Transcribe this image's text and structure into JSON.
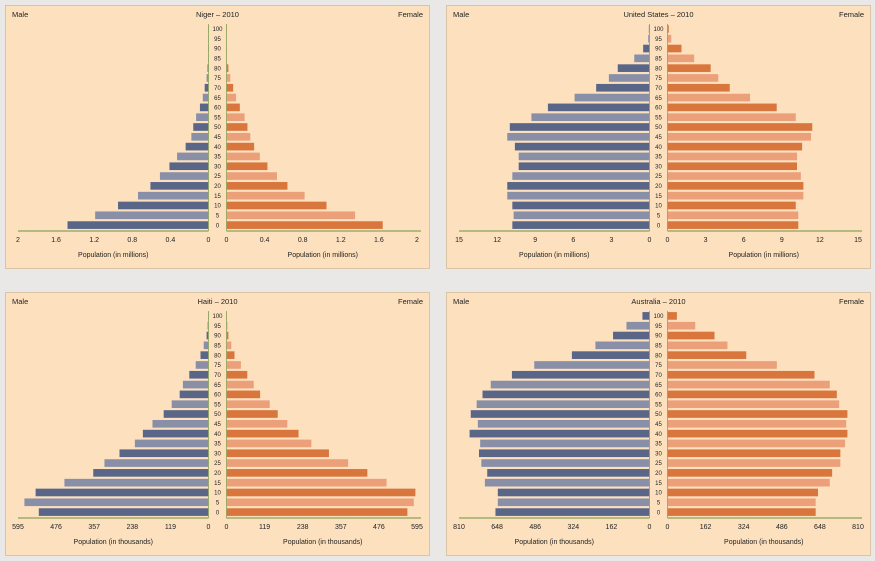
{
  "colors": {
    "panel_bg": "#fde1bf",
    "male_dark": "#5a6688",
    "male_light": "#8a8fa8",
    "female_dark": "#d8763e",
    "female_light": "#eba07a",
    "axis": "#8aa35a"
  },
  "age_labels": [
    "0",
    "5",
    "10",
    "15",
    "20",
    "25",
    "30",
    "35",
    "40",
    "45",
    "50",
    "55",
    "60",
    "65",
    "70",
    "75",
    "80",
    "85",
    "90",
    "95",
    "100"
  ],
  "chart_data": [
    {
      "type": "bar",
      "title": "Niger – 2010",
      "left_label": "Male",
      "right_label": "Female",
      "xlabel_left": "Population (in millions)",
      "xlabel_right": "Population (in millions)",
      "max": 2,
      "ticks": [
        "2",
        "1.6",
        "1.2",
        "0.8",
        "0.4",
        "0",
        "0",
        "0.4",
        "0.8",
        "1.2",
        "1.6",
        "2"
      ],
      "male": [
        1.48,
        1.19,
        0.95,
        0.74,
        0.61,
        0.51,
        0.41,
        0.33,
        0.24,
        0.18,
        0.16,
        0.13,
        0.09,
        0.06,
        0.04,
        0.02,
        0.01,
        0.005,
        0.003,
        0.001,
        0.001
      ],
      "female": [
        1.64,
        1.35,
        1.05,
        0.82,
        0.64,
        0.53,
        0.43,
        0.35,
        0.29,
        0.25,
        0.22,
        0.19,
        0.14,
        0.1,
        0.07,
        0.04,
        0.02,
        0.005,
        0.003,
        0.001,
        0.001
      ]
    },
    {
      "type": "bar",
      "title": "United States – 2010",
      "left_label": "Male",
      "right_label": "Female",
      "xlabel_left": "Population (in millions)",
      "xlabel_right": "Population (in millions)",
      "max": 15,
      "ticks": [
        "15",
        "12",
        "9",
        "6",
        "3",
        "0",
        "0",
        "3",
        "6",
        "9",
        "12",
        "15"
      ],
      "male": [
        10.8,
        10.7,
        10.8,
        11.2,
        11.2,
        10.8,
        10.3,
        10.3,
        10.6,
        11.2,
        11,
        9.3,
        8,
        5.9,
        4.2,
        3.2,
        2.5,
        1.2,
        0.5,
        0.1,
        0.05
      ],
      "female": [
        10.3,
        10.3,
        10.1,
        10.7,
        10.7,
        10.5,
        10.2,
        10.2,
        10.6,
        11.3,
        11.4,
        10.1,
        8.6,
        6.5,
        4.9,
        4,
        3.4,
        2.1,
        1.1,
        0.3,
        0.1
      ]
    },
    {
      "type": "bar",
      "title": "Haiti – 2010",
      "left_label": "Male",
      "right_label": "Female",
      "xlabel_left": "Population (in thousands)",
      "xlabel_right": "Population (in thousands)",
      "max": 595,
      "ticks": [
        "595",
        "476",
        "357",
        "238",
        "119",
        "0",
        "0",
        "119",
        "238",
        "357",
        "476",
        "595"
      ],
      "male": [
        530,
        575,
        540,
        450,
        360,
        325,
        278,
        230,
        205,
        175,
        140,
        115,
        90,
        80,
        60,
        40,
        25,
        15,
        6,
        3,
        1
      ],
      "female": [
        565,
        585,
        590,
        500,
        440,
        380,
        320,
        265,
        225,
        190,
        160,
        135,
        105,
        85,
        65,
        45,
        25,
        15,
        6,
        3,
        1
      ]
    },
    {
      "type": "bar",
      "title": "Australia – 2010",
      "left_label": "Male",
      "right_label": "Female",
      "xlabel_left": "Population (in thousands)",
      "xlabel_right": "Population (in thousands)",
      "max": 810,
      "ticks": [
        "810",
        "648",
        "486",
        "324",
        "162",
        "0",
        "0",
        "162",
        "324",
        "486",
        "648",
        "810"
      ],
      "male": [
        655,
        645,
        645,
        700,
        690,
        715,
        725,
        720,
        765,
        730,
        760,
        735,
        710,
        675,
        585,
        490,
        330,
        230,
        155,
        98,
        30
      ],
      "female": [
        630,
        630,
        640,
        690,
        700,
        735,
        735,
        755,
        765,
        760,
        765,
        730,
        720,
        690,
        625,
        465,
        335,
        255,
        200,
        118,
        40
      ]
    }
  ]
}
